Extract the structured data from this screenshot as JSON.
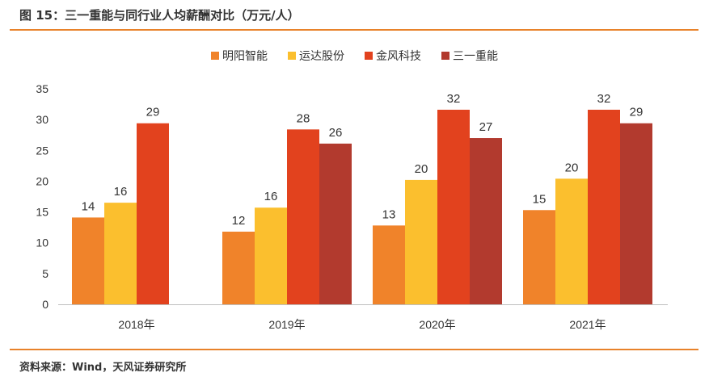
{
  "header": {
    "title": "图 15：三一重能与同行业人均薪酬对比（万元/人）"
  },
  "footer": {
    "source": "资料来源：Wind，天风证券研究所"
  },
  "colors": {
    "rule": "#e8822a",
    "axis": "#bfbfbf",
    "text": "#333333"
  },
  "chart_data": {
    "type": "bar",
    "title": "三一重能与同行业人均薪酬对比（万元/人）",
    "xlabel": "",
    "ylabel": "",
    "categories": [
      "2018年",
      "2019年",
      "2020年",
      "2021年"
    ],
    "ylim": [
      0,
      35
    ],
    "yticks": [
      0,
      5,
      10,
      15,
      20,
      25,
      30,
      35
    ],
    "grid": false,
    "legend_position": "top-center",
    "series": [
      {
        "name": "明阳智能",
        "color": "#f0832a",
        "values": [
          14,
          12,
          13,
          15
        ],
        "plotted": [
          14.1,
          11.8,
          12.8,
          15.3
        ]
      },
      {
        "name": "运达股份",
        "color": "#fbbf2e",
        "values": [
          16,
          16,
          20,
          20
        ],
        "plotted": [
          16.5,
          15.7,
          20.2,
          20.4
        ]
      },
      {
        "name": "金风科技",
        "color": "#e2421e",
        "values": [
          29,
          28,
          32,
          32
        ],
        "plotted": [
          29.4,
          28.4,
          31.6,
          31.6
        ]
      },
      {
        "name": "三一重能",
        "color": "#b23a2e",
        "values": [
          null,
          26,
          27,
          29
        ],
        "plotted": [
          null,
          26.1,
          27.0,
          29.4
        ]
      }
    ]
  }
}
